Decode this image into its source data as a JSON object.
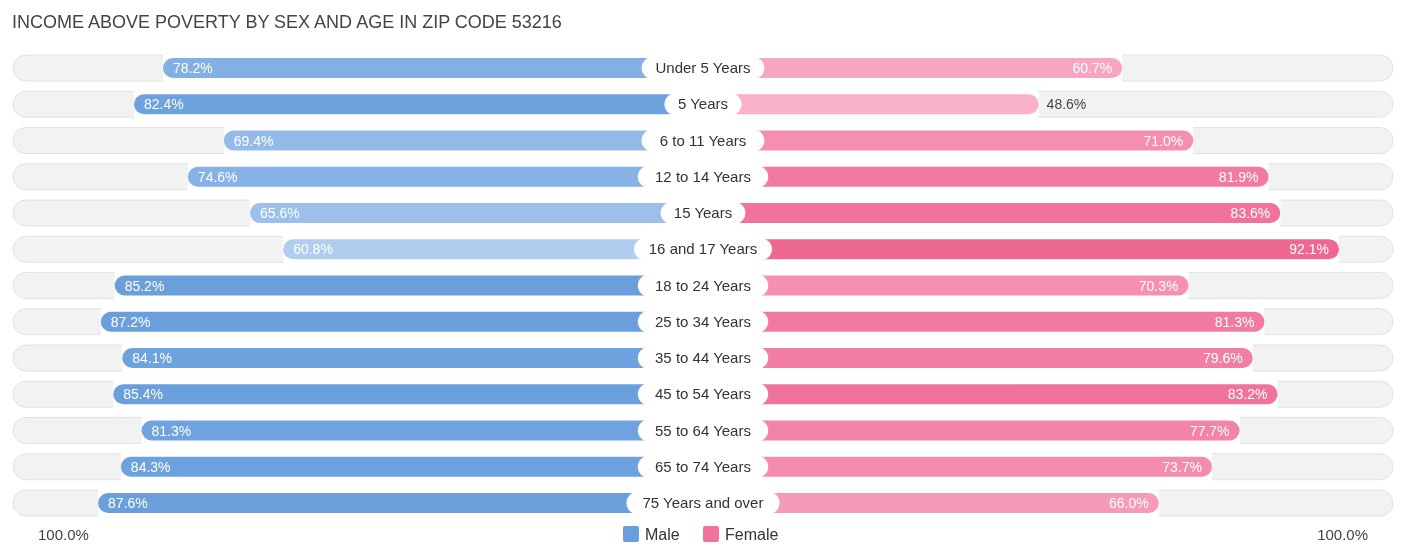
{
  "chart_data": [
    {
      "type": "bar",
      "orientation": "horizontal",
      "title": "INCOME ABOVE POVERTY BY SEX AND AGE IN ZIP CODE 53216",
      "categories": [
        "Under 5 Years",
        "5 Years",
        "6 to 11 Years",
        "12 to 14 Years",
        "15 Years",
        "16 and 17 Years",
        "18 to 24 Years",
        "25 to 34 Years",
        "35 to 44 Years",
        "45 to 54 Years",
        "55 to 64 Years",
        "65 to 74 Years",
        "75 Years and over"
      ],
      "series": [
        {
          "name": "Male",
          "color": "#6a9fdc",
          "values": [
            78.2,
            82.4,
            69.4,
            74.6,
            65.6,
            60.8,
            85.2,
            87.2,
            84.1,
            85.4,
            81.3,
            84.3,
            87.6
          ],
          "value_labels": [
            "78.2%",
            "82.4%",
            "69.4%",
            "74.6%",
            "65.6%",
            "60.8%",
            "85.2%",
            "87.2%",
            "84.1%",
            "85.4%",
            "81.3%",
            "84.3%",
            "87.6%"
          ],
          "colors": [
            "#82b0e4",
            "#6ea2de",
            "#94bbe8",
            "#86b2e5",
            "#9cc0ea",
            "#b0cdef",
            "#6a9fdc",
            "#6a9fdc",
            "#6ea2de",
            "#6a9fdc",
            "#70a3de",
            "#6ea2de",
            "#6a9fdc"
          ]
        }
      ],
      "annotations": [
        "100.0%"
      ],
      "legend": "bottom"
    },
    {
      "type": "bar",
      "orientation": "horizontal",
      "series": [
        {
          "name": "Female",
          "color": "#f0739b",
          "values": [
            60.7,
            48.6,
            71.0,
            81.9,
            83.6,
            92.1,
            70.3,
            81.3,
            79.6,
            83.2,
            77.7,
            73.7,
            66.0
          ],
          "value_labels": [
            "60.7%",
            "48.6%",
            "71.0%",
            "81.9%",
            "83.6%",
            "92.1%",
            "70.3%",
            "81.3%",
            "79.6%",
            "83.2%",
            "77.7%",
            "73.7%",
            "66.0%"
          ],
          "colors": [
            "#f7a6c2",
            "#f9b2c9",
            "#f48fb1",
            "#f27aa0",
            "#f0739b",
            "#ee6891",
            "#f590b2",
            "#f27aa0",
            "#f27ea3",
            "#f0739b",
            "#f384a8",
            "#f48cae",
            "#f59ab9"
          ]
        }
      ],
      "annotations": [
        "100.0%"
      ],
      "legend": "bottom"
    }
  ]
}
